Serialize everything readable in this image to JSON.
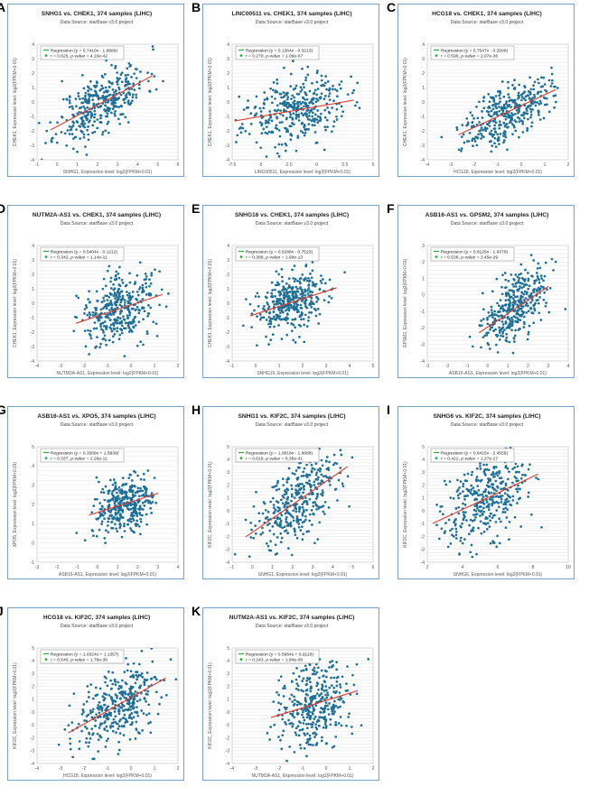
{
  "source": "Data Source: starBase v3.0 project",
  "legend_labels": {
    "regression": "Regression",
    "r": "r",
    "pvalue": "p-value"
  },
  "colors": {
    "points": "#1d6f96",
    "line": "#e03a2e",
    "frame": "#7aa0c8",
    "grid": "#d8d8d8"
  },
  "chart_data": [
    {
      "letter": "A",
      "type": "scatter",
      "title": "SNHG1 vs. CHEK1, 374 samples (LIHC)",
      "xlabel": "SNHG1, Expression level: log2(FPKM+0.01)",
      "ylabel": "CHEK1, Expression level: log2(FPKM+0.01)",
      "xlim": [
        -1,
        6
      ],
      "ylim": [
        -4,
        4
      ],
      "xticks": [
        -1,
        0,
        1,
        2,
        3,
        4,
        5,
        6
      ],
      "yticks": [
        -4,
        -3,
        -2,
        -1,
        0,
        1,
        2,
        3,
        4
      ],
      "regression_text": "(y = 0.7410x - 1.6886)",
      "r_text": "0.626",
      "p_text": "4.10e-42",
      "slope": 0.741,
      "intercept": -1.6886,
      "x_center": 2.2,
      "x_sd": 1.1,
      "seed": 11
    },
    {
      "letter": "B",
      "type": "scatter",
      "title": "LINC00511 vs. CHEK1, 374 samples (LIHC)",
      "xlabel": "LINC00511, Expression level: log2(FPKM+0.01)",
      "ylabel": "CHEK1, Expression level: log2(FPKM+0.01)",
      "xlim": [
        -7.5,
        5
      ],
      "ylim": [
        -4,
        4
      ],
      "xticks": [
        -7.5,
        -5,
        -2.5,
        0,
        2.5,
        5
      ],
      "yticks": [
        -4,
        -3,
        -2,
        -1,
        0,
        1,
        2,
        3,
        4
      ],
      "regression_text": "(y = 0.1364x - 0.3213)",
      "r_text": "0.270",
      "p_text": "1.09e-07",
      "slope": 0.1364,
      "intercept": -0.3213,
      "x_center": -2,
      "x_sd": 2.3,
      "seed": 23
    },
    {
      "letter": "C",
      "type": "scatter",
      "title": "HCG18 vs. CHEK1, 374 samples (LIHC)",
      "xlabel": "HCG18, Expression level: log2(FPKM+0.01)",
      "ylabel": "CHEK1, Expression level: log2(FPKM+0.01)",
      "xlim": [
        -4,
        2
      ],
      "ylim": [
        -4,
        4
      ],
      "xticks": [
        -4,
        -3,
        -2,
        -1,
        0,
        1,
        2
      ],
      "yticks": [
        -4,
        -3,
        -2,
        -1,
        0,
        1,
        2,
        3,
        4
      ],
      "regression_text": "(y = 0.7547x - 0.2500)",
      "r_text": "0.590",
      "p_text": "2.07e-36",
      "slope": 0.7547,
      "intercept": -0.25,
      "x_center": -0.6,
      "x_sd": 0.9,
      "seed": 37
    },
    {
      "letter": "D",
      "type": "scatter",
      "title": "NUTM2A-AS1 vs. CHEK1, 374 samples (LIHC)",
      "xlabel": "NUTM2A-AS1, Expression level: log2(FPKM+0.01)",
      "ylabel": "CHEK1, Expression level: log2(FPKM+0.01)",
      "xlim": [
        -4,
        2
      ],
      "ylim": [
        -4,
        4
      ],
      "xticks": [
        -4,
        -3,
        -2,
        -1,
        0,
        1,
        2
      ],
      "yticks": [
        -4,
        -3,
        -2,
        -1,
        0,
        1,
        2,
        3,
        4
      ],
      "regression_text": "(y = 0.5404x - 0.1212)",
      "r_text": "0.342",
      "p_text": "1.14e-11",
      "slope": 0.5404,
      "intercept": -0.1212,
      "x_center": -0.5,
      "x_sd": 0.8,
      "seed": 41
    },
    {
      "letter": "E",
      "type": "scatter",
      "title": "SNHG16 vs. CHEK1, 374 samples (LIHC)",
      "xlabel": "SNHG16, Expression level: log2(FPKM+0.01)",
      "ylabel": "CHEK1, Expression level: log2(FPKM+0.01)",
      "xlim": [
        -1,
        5
      ],
      "ylim": [
        -4,
        4
      ],
      "xticks": [
        -1,
        0,
        1,
        2,
        3,
        4,
        5
      ],
      "yticks": [
        -4,
        -3,
        -2,
        -1,
        0,
        1,
        2,
        3,
        4
      ],
      "regression_text": "(y = 0.5288x - 0.7523)",
      "r_text": "0.388",
      "p_text": "1.99e-13",
      "slope": 0.5288,
      "intercept": -0.7523,
      "x_center": 1.6,
      "x_sd": 0.8,
      "seed": 53
    },
    {
      "letter": "F",
      "type": "scatter",
      "title": "ASB16-AS1 vs. GPSM2, 374 samples (LIHC)",
      "xlabel": "ASB16-AS1, Expression level: log2(FPKM+0.01)",
      "ylabel": "GPSM2, Expression level: log2(FPKM+0.01)",
      "xlim": [
        -3,
        4
      ],
      "ylim": [
        -4,
        3
      ],
      "xticks": [
        -3,
        -2,
        -1,
        0,
        1,
        2,
        3,
        4
      ],
      "yticks": [
        -4,
        -3,
        -2,
        -1,
        0,
        1,
        2,
        3
      ],
      "regression_text": "(y = 0.8125x - 1.9379)",
      "r_text": "0.536",
      "p_text": "3.45e-29",
      "slope": 0.8125,
      "intercept": -1.9379,
      "x_center": 1.3,
      "x_sd": 0.75,
      "seed": 67
    },
    {
      "letter": "G",
      "type": "scatter",
      "title": "ASB16-AS1 vs. XPO5, 374 samples (LIHC)",
      "xlabel": "ASB16-AS1, Expression level: log2(FPKM+0.01)",
      "ylabel": "XPO5, Expression level: log2(FPKM+0.01)",
      "xlim": [
        -3,
        4
      ],
      "ylim": [
        -1,
        5
      ],
      "xticks": [
        -3,
        -2,
        -1,
        0,
        1,
        2,
        3,
        4
      ],
      "yticks": [
        -1,
        0,
        1,
        2,
        3,
        4,
        5
      ],
      "regression_text": "(y = 0.3308x + 1.5839)",
      "r_text": "0.337",
      "p_text": "2.26e-11",
      "slope": 0.3308,
      "intercept": 1.5839,
      "x_center": 1.3,
      "x_sd": 0.75,
      "seed": 79
    },
    {
      "letter": "H",
      "type": "scatter",
      "title": "SNHG1 vs. KIF2C, 374 samples (LIHC)",
      "xlabel": "SNHG1, Expression level: log2(FPKM+0.01)",
      "ylabel": "KIF2C, Expression level: log2(FPKM+0.01)",
      "xlim": [
        -1,
        6
      ],
      "ylim": [
        -4,
        5
      ],
      "xticks": [
        -1,
        0,
        1,
        2,
        3,
        4,
        5,
        6
      ],
      "yticks": [
        -4,
        -3,
        -2,
        -1,
        0,
        1,
        2,
        3,
        4,
        5
      ],
      "regression_text": "(y = 1.0818x - 1.6688)",
      "r_text": "0.619",
      "p_text": "6.35e-41",
      "slope": 1.0818,
      "intercept": -1.6688,
      "x_center": 2.2,
      "x_sd": 1.1,
      "seed": 83
    },
    {
      "letter": "I",
      "type": "scatter",
      "title": "SNHG6 vs. KIF2C, 374 samples (LIHC)",
      "xlabel": "SNHG6, Expression level: log2(FPKM+0.01)",
      "ylabel": "KIF2C, Expression level: log2(FPKM+0.01)",
      "xlim": [
        2,
        10
      ],
      "ylim": [
        -4,
        5
      ],
      "xticks": [
        2,
        4,
        6,
        8,
        10
      ],
      "yticks": [
        -4,
        -3,
        -2,
        -1,
        0,
        1,
        2,
        3,
        4,
        5
      ],
      "regression_text": "(y = 0.6415x - 2.4559)",
      "r_text": "0.422",
      "p_text": "1.27e-17",
      "slope": 0.6415,
      "intercept": -2.4559,
      "x_center": 5.3,
      "x_sd": 1.3,
      "seed": 97
    },
    {
      "letter": "J",
      "type": "scatter",
      "title": "HCG18 vs. KIF2C, 374 samples (LIHC)",
      "xlabel": "HCG18, Expression level: log2(FPKM+0.01)",
      "ylabel": "KIF2C, Expression level: log2(FPKM+0.01)",
      "xlim": [
        -4,
        2
      ],
      "ylim": [
        -4,
        5
      ],
      "xticks": [
        -4,
        -3,
        -2,
        -1,
        0,
        1,
        2
      ],
      "yticks": [
        -4,
        -3,
        -2,
        -1,
        0,
        1,
        2,
        3,
        4,
        5
      ],
      "regression_text": "(y = 1.0324x + 1.1357)",
      "r_text": "0.546",
      "p_text": "1.78e-30",
      "slope": 1.0324,
      "intercept": 1.1357,
      "x_center": -0.6,
      "x_sd": 0.9,
      "seed": 101
    },
    {
      "letter": "K",
      "type": "scatter",
      "title": "NUTM2A-AS1 vs. KIF2C, 374 samples (LIHC)",
      "xlabel": "NUTM2A-AS1, Expression level: log2(FPKM+0.01)",
      "ylabel": "KIF2C, Expression level: log2(FPKM+0.01)",
      "xlim": [
        -4,
        2
      ],
      "ylim": [
        -4,
        5
      ],
      "xticks": [
        -4,
        -3,
        -2,
        -1,
        0,
        1,
        2
      ],
      "yticks": [
        -4,
        -3,
        -2,
        -1,
        0,
        1,
        2,
        3,
        4,
        5
      ],
      "regression_text": "(y = 0.5684x + 0.9118)",
      "r_text": "0.243",
      "p_text": "1.94e-06",
      "slope": 0.5684,
      "intercept": 0.9118,
      "x_center": -0.5,
      "x_sd": 0.8,
      "seed": 113
    }
  ]
}
